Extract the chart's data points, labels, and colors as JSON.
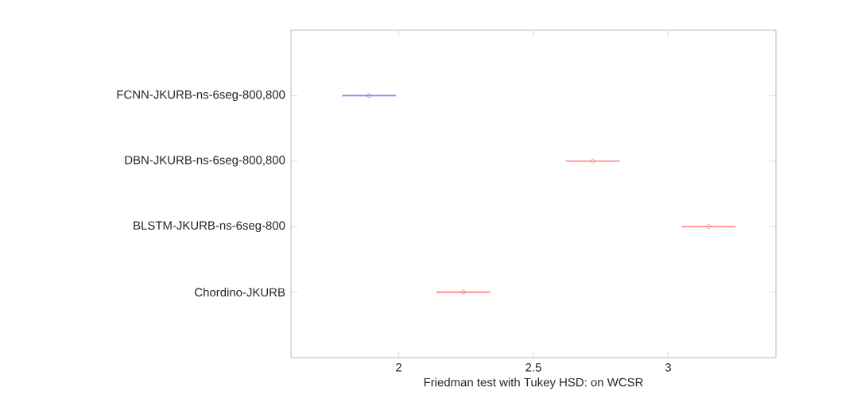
{
  "chart_data": {
    "type": "scatter",
    "orientation": "horizontal",
    "xlabel": "Friedman test with Tukey HSD: on WCSR",
    "categories": [
      "FCNN-JKURB-ns-6seg-800,800",
      "DBN-JKURB-ns-6seg-800,800",
      "BLSTM-JKURB-ns-6seg-800",
      "Chordino-JKURB"
    ],
    "values": [
      1.89,
      2.72,
      3.15,
      2.24
    ],
    "errors": [
      0.1,
      0.1,
      0.1,
      0.1
    ],
    "colors": [
      "#7f7fff",
      "#ff7f7f",
      "#ff7f7f",
      "#ff7f7f"
    ],
    "marker": "circle",
    "xlim": [
      1.6,
      3.4
    ],
    "xticks": [
      2,
      2.5,
      3
    ],
    "ref_lines": [
      {
        "axis": "x",
        "value": 1.79,
        "color": "#e4e4e4",
        "line_style": "dotted"
      },
      {
        "axis": "x",
        "value": 1.99,
        "color": "#e4e4e4",
        "line_style": "dotted"
      }
    ]
  }
}
